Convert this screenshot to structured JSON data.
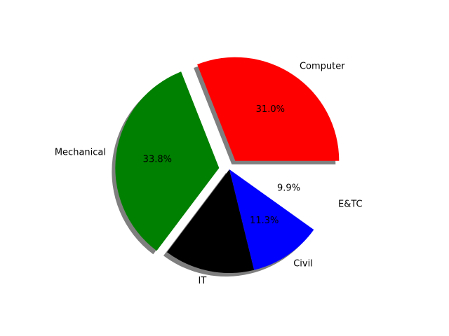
{
  "chart_data": {
    "type": "pie",
    "title": "",
    "slices": [
      {
        "label": "Computer",
        "pct_label": "31.0%",
        "value": 31.0,
        "color": "#ff0000",
        "explode": true,
        "shadow": true,
        "visible": true
      },
      {
        "label": "Mechanical",
        "pct_label": "33.8%",
        "value": 33.8,
        "color": "#008000",
        "explode": true,
        "shadow": true,
        "visible": true
      },
      {
        "label": "IT",
        "pct_label": "14.1%",
        "value": 14.1,
        "color": "#000000",
        "explode": false,
        "shadow": true,
        "visible": true,
        "show_pct": false
      },
      {
        "label": "Civil",
        "pct_label": "11.3%",
        "value": 11.3,
        "color": "#0000ff",
        "explode": false,
        "shadow": true,
        "visible": true
      },
      {
        "label": "E&TC",
        "pct_label": "9.9%",
        "value": 9.9,
        "color": "#ffffff",
        "explode": false,
        "shadow": false,
        "visible": false
      }
    ],
    "start_angle_deg": 0,
    "direction": "counterclockwise",
    "legend": "none"
  }
}
